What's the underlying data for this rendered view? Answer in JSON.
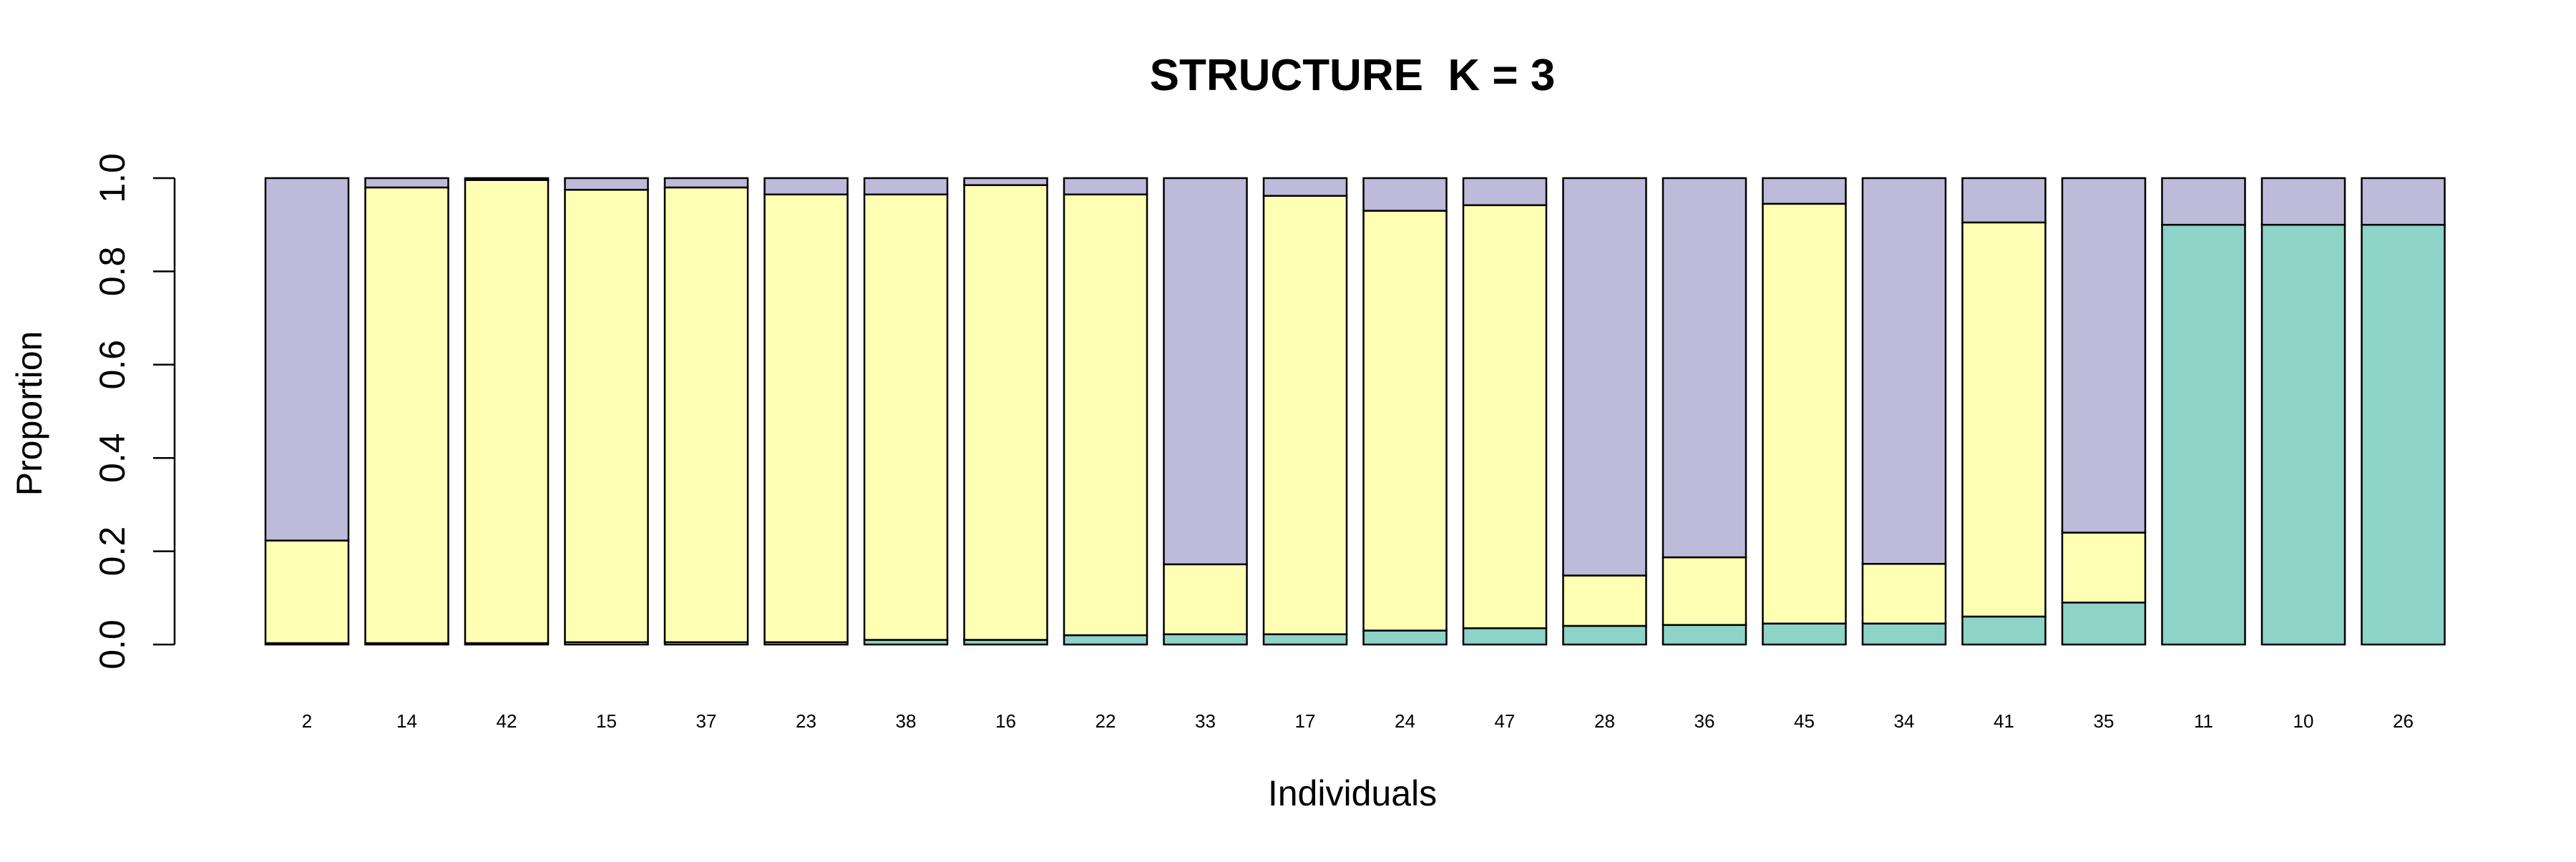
{
  "chart_data": {
    "type": "bar",
    "stacked": true,
    "title": "STRUCTURE  K = 3",
    "xlabel": "Individuals",
    "ylabel": "Proportion",
    "ylim": [
      0,
      1
    ],
    "yticks": [
      "0.0",
      "0.2",
      "0.4",
      "0.6",
      "0.8",
      "1.0"
    ],
    "grid": false,
    "legend": "none",
    "categories": [
      "2",
      "14",
      "42",
      "15",
      "37",
      "23",
      "38",
      "16",
      "22",
      "33",
      "17",
      "24",
      "47",
      "28",
      "36",
      "45",
      "34",
      "41",
      "35",
      "11",
      "10",
      "26"
    ],
    "series": [
      {
        "color": "#8DD3C7",
        "values": [
          0.003,
          0.003,
          0.003,
          0.005,
          0.005,
          0.005,
          0.01,
          0.01,
          0.02,
          0.022,
          0.022,
          0.03,
          0.035,
          0.04,
          0.042,
          0.045,
          0.045,
          0.06,
          0.09,
          0.9,
          0.9,
          0.9
        ]
      },
      {
        "color": "#FFFFB3",
        "values": [
          0.22,
          0.977,
          0.993,
          0.97,
          0.975,
          0.96,
          0.955,
          0.975,
          0.945,
          0.15,
          0.94,
          0.9,
          0.907,
          0.108,
          0.145,
          0.9,
          0.128,
          0.845,
          0.15,
          0.0,
          0.0,
          0.0
        ]
      },
      {
        "color": "#BEBADA",
        "values": [
          0.777,
          0.02,
          0.004,
          0.025,
          0.02,
          0.035,
          0.035,
          0.015,
          0.035,
          0.828,
          0.038,
          0.07,
          0.058,
          0.852,
          0.813,
          0.055,
          0.827,
          0.095,
          0.76,
          0.1,
          0.1,
          0.1
        ]
      }
    ]
  }
}
